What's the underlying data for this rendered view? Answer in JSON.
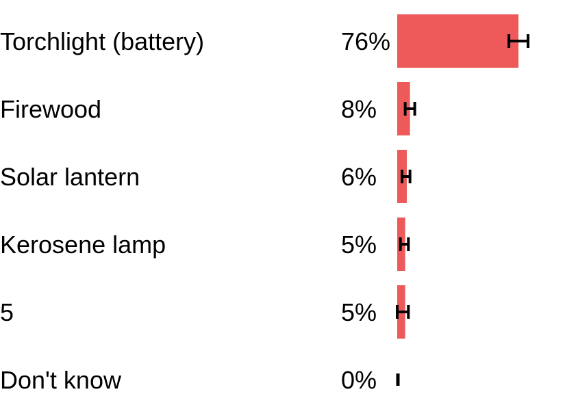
{
  "chart_data": {
    "type": "bar",
    "orientation": "horizontal",
    "title": "",
    "xlabel": "",
    "ylabel": "",
    "xlim": [
      0,
      100
    ],
    "grid": false,
    "legend": "none",
    "bar_color": "#ee5a5a",
    "errorbar_color": "#000000",
    "categories": [
      "Torchlight (battery)",
      "Firewood",
      "Solar lantern",
      "Kerosene lamp",
      "5",
      "Don't know"
    ],
    "value_labels": [
      "76%",
      "8%",
      "6%",
      "5%",
      "5%",
      "0%"
    ],
    "values": [
      76,
      8,
      6,
      5,
      5,
      0
    ],
    "error_low": [
      70,
      5,
      3,
      2,
      0,
      0
    ],
    "error_high": [
      82,
      11,
      8,
      7,
      7,
      0
    ]
  }
}
